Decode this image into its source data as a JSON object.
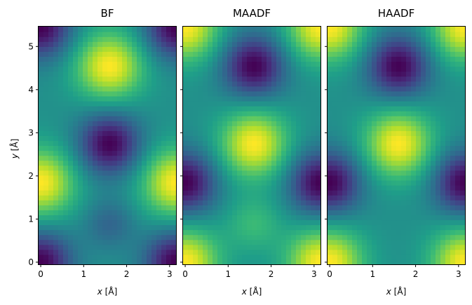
{
  "figure": {
    "ylabel_var": "y",
    "ylabel_unit": " [Å]",
    "xlabel_var": "x",
    "xlabel_unit": " [Å]"
  },
  "chart_data": [
    {
      "type": "heatmap",
      "title": "BF",
      "colormap": "viridis",
      "xlim": [
        0,
        3.15
      ],
      "ylim": [
        0,
        5.46
      ],
      "xticks": [
        "0",
        "1",
        "2",
        "3"
      ],
      "xtick_values": [
        0,
        1,
        2,
        3
      ],
      "yticks": [
        "0",
        "1",
        "2",
        "3",
        "4",
        "5"
      ],
      "ytick_values": [
        0,
        1,
        2,
        3,
        4,
        5
      ],
      "grid": false,
      "features": [
        {
          "kind": "bright",
          "x": 1.6,
          "y": 4.55,
          "note": "strong maximum"
        },
        {
          "kind": "bright",
          "x": 0.0,
          "y": 1.85,
          "note": "edge maximum"
        },
        {
          "kind": "bright",
          "x": 3.15,
          "y": 1.85,
          "note": "edge maximum"
        },
        {
          "kind": "dark",
          "x": 1.6,
          "y": 2.75
        },
        {
          "kind": "dark",
          "x": 0.0,
          "y": 5.46
        },
        {
          "kind": "dark",
          "x": 3.15,
          "y": 5.46
        },
        {
          "kind": "dark",
          "x": 0.0,
          "y": 0.0
        },
        {
          "kind": "dark",
          "x": 3.15,
          "y": 0.0
        },
        {
          "kind": "dim",
          "x": 1.6,
          "y": 0.9
        }
      ]
    },
    {
      "type": "heatmap",
      "title": "MAADF",
      "colormap": "viridis",
      "xlim": [
        0,
        3.15
      ],
      "ylim": [
        0,
        5.46
      ],
      "xticks": [
        "0",
        "1",
        "2",
        "3"
      ],
      "xtick_values": [
        0,
        1,
        2,
        3
      ],
      "grid": false,
      "features": [
        {
          "kind": "bright",
          "x": 1.6,
          "y": 2.75
        },
        {
          "kind": "bright",
          "x": 0.0,
          "y": 5.46
        },
        {
          "kind": "bright",
          "x": 3.15,
          "y": 5.46
        },
        {
          "kind": "bright",
          "x": 0.0,
          "y": 0.0
        },
        {
          "kind": "bright",
          "x": 3.15,
          "y": 0.0
        },
        {
          "kind": "dark",
          "x": 1.6,
          "y": 4.55
        },
        {
          "kind": "dark",
          "x": 0.0,
          "y": 1.85
        },
        {
          "kind": "dark",
          "x": 3.15,
          "y": 1.85
        },
        {
          "kind": "mid",
          "x": 1.6,
          "y": 0.9
        }
      ]
    },
    {
      "type": "heatmap",
      "title": "HAADF",
      "colormap": "viridis",
      "xlim": [
        0,
        3.15
      ],
      "ylim": [
        0,
        5.46
      ],
      "xticks": [
        "0",
        "1",
        "2",
        "3"
      ],
      "xtick_values": [
        0,
        1,
        2,
        3
      ],
      "grid": false,
      "features": [
        {
          "kind": "bright",
          "x": 1.6,
          "y": 2.75
        },
        {
          "kind": "bright",
          "x": 0.0,
          "y": 5.46
        },
        {
          "kind": "bright",
          "x": 3.15,
          "y": 5.46
        },
        {
          "kind": "bright",
          "x": 0.0,
          "y": 0.0
        },
        {
          "kind": "bright",
          "x": 3.15,
          "y": 0.0
        },
        {
          "kind": "dark",
          "x": 1.6,
          "y": 4.55
        },
        {
          "kind": "dark",
          "x": 0.0,
          "y": 1.85
        },
        {
          "kind": "dark",
          "x": 3.15,
          "y": 1.85
        }
      ]
    }
  ]
}
